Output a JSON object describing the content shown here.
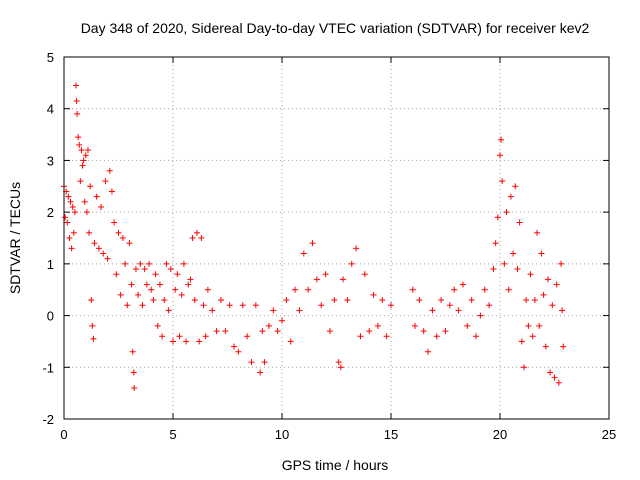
{
  "chart_data": {
    "type": "scatter",
    "title": "Day 348 of 2020, Sidereal Day-to-day VTEC variation (SDTVAR) for receiver kev2",
    "xlabel": "GPS time / hours",
    "ylabel": "SDTVAR / TECUs",
    "xlim": [
      0,
      25
    ],
    "ylim": [
      -2,
      5
    ],
    "x_ticks": [
      0,
      5,
      10,
      15,
      20,
      25
    ],
    "y_ticks": [
      -2,
      -1,
      0,
      1,
      2,
      3,
      4,
      5
    ],
    "x_tick_labels": [
      "0",
      "5",
      "10",
      "15",
      "20",
      "25"
    ],
    "y_tick_labels": [
      "-2",
      "-1",
      "0",
      "1",
      "2",
      "3",
      "4",
      "5"
    ],
    "grid": true,
    "marker": "+",
    "color": "#ff0000",
    "series": [
      {
        "name": "SDTVAR",
        "points": [
          [
            0.0,
            2.5
          ],
          [
            0.05,
            1.9
          ],
          [
            0.1,
            2.4
          ],
          [
            0.15,
            1.8
          ],
          [
            0.2,
            2.3
          ],
          [
            0.25,
            1.5
          ],
          [
            0.3,
            2.2
          ],
          [
            0.35,
            1.3
          ],
          [
            0.4,
            2.1
          ],
          [
            0.45,
            1.6
          ],
          [
            0.5,
            2.0
          ],
          [
            0.55,
            4.45
          ],
          [
            0.58,
            4.15
          ],
          [
            0.6,
            3.9
          ],
          [
            0.65,
            3.45
          ],
          [
            0.7,
            3.3
          ],
          [
            0.75,
            2.6
          ],
          [
            0.8,
            3.2
          ],
          [
            0.85,
            2.9
          ],
          [
            0.9,
            3.0
          ],
          [
            0.95,
            2.2
          ],
          [
            1.0,
            3.1
          ],
          [
            1.05,
            2.0
          ],
          [
            1.1,
            3.2
          ],
          [
            1.15,
            1.6
          ],
          [
            1.2,
            2.5
          ],
          [
            1.25,
            0.3
          ],
          [
            1.3,
            -0.2
          ],
          [
            1.35,
            -0.45
          ],
          [
            1.4,
            1.4
          ],
          [
            1.5,
            2.3
          ],
          [
            1.6,
            1.3
          ],
          [
            1.7,
            2.1
          ],
          [
            1.8,
            1.2
          ],
          [
            1.9,
            2.6
          ],
          [
            2.0,
            1.1
          ],
          [
            2.1,
            2.8
          ],
          [
            2.2,
            2.4
          ],
          [
            2.3,
            1.8
          ],
          [
            2.4,
            0.8
          ],
          [
            2.5,
            1.6
          ],
          [
            2.6,
            0.4
          ],
          [
            2.7,
            1.5
          ],
          [
            2.8,
            1.0
          ],
          [
            2.9,
            0.2
          ],
          [
            3.0,
            1.4
          ],
          [
            3.1,
            0.6
          ],
          [
            3.15,
            -0.7
          ],
          [
            3.2,
            -1.1
          ],
          [
            3.22,
            -1.4
          ],
          [
            3.3,
            0.9
          ],
          [
            3.4,
            0.4
          ],
          [
            3.5,
            1.0
          ],
          [
            3.6,
            0.2
          ],
          [
            3.7,
            0.9
          ],
          [
            3.8,
            0.6
          ],
          [
            3.9,
            1.0
          ],
          [
            4.0,
            0.5
          ],
          [
            4.1,
            0.3
          ],
          [
            4.2,
            0.8
          ],
          [
            4.3,
            -0.2
          ],
          [
            4.4,
            0.6
          ],
          [
            4.5,
            -0.4
          ],
          [
            4.6,
            0.3
          ],
          [
            4.7,
            1.0
          ],
          [
            4.8,
            0.1
          ],
          [
            4.9,
            0.9
          ],
          [
            5.0,
            -0.5
          ],
          [
            5.1,
            0.5
          ],
          [
            5.2,
            0.8
          ],
          [
            5.3,
            -0.4
          ],
          [
            5.4,
            0.4
          ],
          [
            5.5,
            1.0
          ],
          [
            5.6,
            -0.5
          ],
          [
            5.7,
            0.6
          ],
          [
            5.8,
            0.7
          ],
          [
            5.9,
            1.5
          ],
          [
            6.0,
            0.3
          ],
          [
            6.1,
            1.6
          ],
          [
            6.2,
            -0.5
          ],
          [
            6.3,
            1.5
          ],
          [
            6.4,
            0.2
          ],
          [
            6.5,
            -0.4
          ],
          [
            6.6,
            0.5
          ],
          [
            6.8,
            0.1
          ],
          [
            7.0,
            -0.3
          ],
          [
            7.2,
            0.3
          ],
          [
            7.4,
            -0.3
          ],
          [
            7.6,
            0.2
          ],
          [
            7.8,
            -0.6
          ],
          [
            8.0,
            -0.7
          ],
          [
            8.2,
            0.2
          ],
          [
            8.4,
            -0.4
          ],
          [
            8.6,
            -0.9
          ],
          [
            8.8,
            0.2
          ],
          [
            9.0,
            -1.1
          ],
          [
            9.1,
            -0.3
          ],
          [
            9.2,
            -0.9
          ],
          [
            9.4,
            -0.2
          ],
          [
            9.6,
            0.1
          ],
          [
            9.8,
            -0.3
          ],
          [
            10.0,
            -0.1
          ],
          [
            10.2,
            0.3
          ],
          [
            10.4,
            -0.5
          ],
          [
            10.6,
            0.5
          ],
          [
            10.8,
            0.1
          ],
          [
            11.0,
            1.2
          ],
          [
            11.2,
            0.5
          ],
          [
            11.4,
            1.4
          ],
          [
            11.6,
            0.7
          ],
          [
            11.8,
            0.2
          ],
          [
            12.0,
            0.8
          ],
          [
            12.2,
            -0.3
          ],
          [
            12.4,
            0.3
          ],
          [
            12.6,
            -0.9
          ],
          [
            12.7,
            -1.0
          ],
          [
            12.8,
            0.7
          ],
          [
            13.0,
            0.3
          ],
          [
            13.2,
            1.0
          ],
          [
            13.4,
            1.3
          ],
          [
            13.6,
            -0.4
          ],
          [
            13.8,
            0.8
          ],
          [
            14.0,
            -0.3
          ],
          [
            14.2,
            0.4
          ],
          [
            14.4,
            -0.2
          ],
          [
            14.6,
            0.3
          ],
          [
            14.8,
            -0.4
          ],
          [
            15.0,
            0.2
          ],
          [
            16.0,
            0.5
          ],
          [
            16.1,
            -0.2
          ],
          [
            16.3,
            0.3
          ],
          [
            16.5,
            -0.3
          ],
          [
            16.7,
            -0.7
          ],
          [
            16.9,
            0.1
          ],
          [
            17.1,
            -0.4
          ],
          [
            17.3,
            0.3
          ],
          [
            17.5,
            -0.3
          ],
          [
            17.7,
            0.2
          ],
          [
            17.9,
            0.5
          ],
          [
            18.1,
            0.1
          ],
          [
            18.3,
            0.6
          ],
          [
            18.5,
            -0.2
          ],
          [
            18.7,
            0.3
          ],
          [
            18.9,
            -0.4
          ],
          [
            19.1,
            0.0
          ],
          [
            19.3,
            0.5
          ],
          [
            19.5,
            0.2
          ],
          [
            19.7,
            0.9
          ],
          [
            19.8,
            1.4
          ],
          [
            19.9,
            1.9
          ],
          [
            20.0,
            3.1
          ],
          [
            20.05,
            3.4
          ],
          [
            20.1,
            2.6
          ],
          [
            20.2,
            1.0
          ],
          [
            20.3,
            2.0
          ],
          [
            20.4,
            0.5
          ],
          [
            20.5,
            2.3
          ],
          [
            20.6,
            1.2
          ],
          [
            20.7,
            2.5
          ],
          [
            20.8,
            0.9
          ],
          [
            20.9,
            1.8
          ],
          [
            21.0,
            -0.5
          ],
          [
            21.1,
            -1.0
          ],
          [
            21.2,
            0.3
          ],
          [
            21.3,
            -0.2
          ],
          [
            21.4,
            0.8
          ],
          [
            21.5,
            -0.4
          ],
          [
            21.6,
            0.3
          ],
          [
            21.7,
            1.6
          ],
          [
            21.8,
            -0.2
          ],
          [
            21.9,
            1.2
          ],
          [
            22.0,
            0.4
          ],
          [
            22.1,
            -0.6
          ],
          [
            22.2,
            0.7
          ],
          [
            22.3,
            -1.1
          ],
          [
            22.4,
            0.2
          ],
          [
            22.5,
            -1.2
          ],
          [
            22.6,
            0.6
          ],
          [
            22.7,
            -1.3
          ],
          [
            22.8,
            1.0
          ],
          [
            22.85,
            0.1
          ],
          [
            22.9,
            -0.6
          ]
        ]
      }
    ]
  }
}
